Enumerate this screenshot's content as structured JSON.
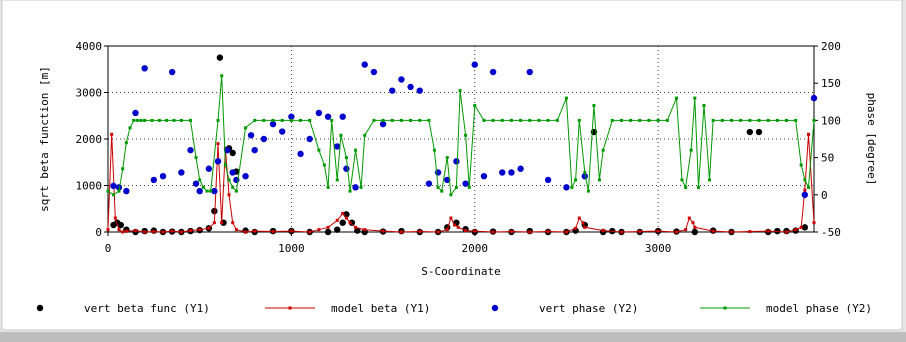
{
  "chart_data": {
    "type": "scatter",
    "xlabel": "S-Coordinate",
    "ylabel_left": "sqrt beta function [m]",
    "ylabel_right": "phase [degree]",
    "xlim": [
      0,
      3850
    ],
    "ylim_left": [
      0,
      4000
    ],
    "ylim_right": [
      -50,
      200
    ],
    "x_ticks": [
      0,
      1000,
      2000,
      3000
    ],
    "y_left_ticks": [
      0,
      1000,
      2000,
      3000,
      4000
    ],
    "y_right_ticks": [
      -50,
      0,
      50,
      100,
      150,
      200
    ],
    "grid": true,
    "legend_position": "bottom",
    "series": [
      {
        "name": "vert beta func (Y1)",
        "axis": "left",
        "color": "#000000",
        "style": "dots",
        "x": [
          30,
          50,
          70,
          100,
          150,
          200,
          250,
          300,
          350,
          400,
          450,
          500,
          550,
          580,
          610,
          630,
          660,
          680,
          700,
          750,
          800,
          900,
          1000,
          1100,
          1200,
          1250,
          1280,
          1300,
          1330,
          1360,
          1400,
          1500,
          1600,
          1700,
          1800,
          1850,
          1900,
          1950,
          2000,
          2100,
          2200,
          2300,
          2400,
          2500,
          2550,
          2600,
          2650,
          2700,
          2750,
          2800,
          2900,
          3000,
          3100,
          3200,
          3300,
          3400,
          3500,
          3550,
          3600,
          3650,
          3700,
          3750,
          3800
        ],
        "y": [
          150,
          200,
          150,
          50,
          0,
          20,
          30,
          0,
          10,
          0,
          20,
          40,
          80,
          450,
          3750,
          200,
          1800,
          1700,
          1300,
          30,
          0,
          20,
          20,
          0,
          0,
          50,
          200,
          380,
          200,
          30,
          0,
          10,
          20,
          0,
          0,
          100,
          200,
          60,
          0,
          10,
          0,
          20,
          0,
          0,
          30,
          150,
          2150,
          0,
          20,
          0,
          0,
          20,
          10,
          0,
          30,
          0,
          2150,
          2150,
          0,
          20,
          20,
          30,
          100
        ]
      },
      {
        "name": "model beta (Y1)",
        "axis": "left",
        "color": "#cc0000",
        "style": "line-markers",
        "x": [
          0,
          20,
          40,
          60,
          80,
          100,
          150,
          200,
          250,
          300,
          350,
          400,
          450,
          500,
          550,
          580,
          600,
          620,
          640,
          660,
          680,
          700,
          750,
          800,
          900,
          1000,
          1100,
          1150,
          1200,
          1250,
          1280,
          1300,
          1320,
          1350,
          1400,
          1500,
          1600,
          1700,
          1800,
          1850,
          1870,
          1890,
          1910,
          1950,
          2000,
          2100,
          2200,
          2300,
          2400,
          2500,
          2550,
          2570,
          2590,
          2600,
          2700,
          2800,
          2900,
          3000,
          3100,
          3150,
          3170,
          3190,
          3200,
          3300,
          3400,
          3500,
          3600,
          3700,
          3750,
          3780,
          3800,
          3820,
          3850
        ],
        "y": [
          50,
          2100,
          300,
          50,
          0,
          20,
          30,
          0,
          10,
          0,
          20,
          0,
          30,
          50,
          80,
          200,
          1900,
          200,
          1800,
          800,
          200,
          50,
          0,
          20,
          10,
          20,
          0,
          50,
          100,
          250,
          400,
          300,
          200,
          100,
          50,
          20,
          0,
          10,
          0,
          50,
          300,
          150,
          100,
          30,
          20,
          0,
          10,
          0,
          10,
          0,
          80,
          300,
          200,
          100,
          30,
          0,
          10,
          20,
          0,
          50,
          300,
          200,
          100,
          20,
          0,
          10,
          20,
          0,
          50,
          100,
          900,
          2100,
          200
        ]
      },
      {
        "name": "vert phase (Y2)",
        "axis": "right",
        "color": "#0000cc",
        "style": "dots",
        "x": [
          30,
          60,
          100,
          150,
          200,
          250,
          300,
          350,
          400,
          450,
          480,
          500,
          550,
          580,
          600,
          650,
          680,
          700,
          750,
          780,
          800,
          850,
          900,
          950,
          1000,
          1050,
          1100,
          1150,
          1200,
          1250,
          1280,
          1300,
          1350,
          1400,
          1450,
          1500,
          1550,
          1600,
          1650,
          1700,
          1750,
          1800,
          1850,
          1900,
          1950,
          2000,
          2050,
          2100,
          2150,
          2200,
          2250,
          2300,
          2400,
          2500,
          2600,
          3800,
          3850
        ],
        "y": [
          12,
          10,
          5,
          110,
          170,
          20,
          25,
          165,
          30,
          60,
          15,
          5,
          35,
          5,
          45,
          60,
          30,
          20,
          25,
          80,
          60,
          75,
          95,
          85,
          105,
          55,
          75,
          110,
          105,
          65,
          105,
          35,
          10,
          175,
          165,
          95,
          140,
          155,
          145,
          140,
          15,
          30,
          20,
          45,
          15,
          175,
          25,
          165,
          30,
          30,
          35,
          165,
          20,
          10,
          25,
          0,
          130
        ]
      },
      {
        "name": "model phase (Y2)",
        "axis": "right",
        "color": "#009900",
        "style": "line-markers",
        "x": [
          0,
          30,
          60,
          80,
          100,
          120,
          140,
          160,
          180,
          200,
          240,
          280,
          320,
          360,
          400,
          450,
          480,
          500,
          520,
          540,
          560,
          600,
          620,
          640,
          660,
          680,
          700,
          750,
          800,
          850,
          900,
          950,
          1000,
          1050,
          1100,
          1150,
          1180,
          1200,
          1220,
          1250,
          1270,
          1300,
          1320,
          1350,
          1380,
          1400,
          1450,
          1500,
          1550,
          1600,
          1650,
          1700,
          1750,
          1780,
          1800,
          1820,
          1850,
          1870,
          1900,
          1920,
          1950,
          1970,
          2000,
          2050,
          2100,
          2150,
          2200,
          2250,
          2300,
          2350,
          2400,
          2450,
          2500,
          2530,
          2550,
          2570,
          2600,
          2620,
          2650,
          2680,
          2700,
          2750,
          2800,
          2850,
          2900,
          2950,
          3000,
          3050,
          3100,
          3130,
          3150,
          3180,
          3200,
          3220,
          3250,
          3280,
          3300,
          3350,
          3400,
          3450,
          3500,
          3550,
          3600,
          3650,
          3700,
          3750,
          3780,
          3800,
          3820,
          3850
        ],
        "y": [
          5,
          0,
          5,
          35,
          70,
          90,
          100,
          100,
          100,
          100,
          100,
          100,
          100,
          100,
          100,
          100,
          50,
          20,
          10,
          5,
          5,
          100,
          160,
          40,
          20,
          10,
          5,
          90,
          100,
          100,
          100,
          100,
          100,
          100,
          100,
          60,
          40,
          10,
          100,
          20,
          80,
          50,
          5,
          60,
          10,
          80,
          100,
          100,
          100,
          100,
          100,
          100,
          100,
          60,
          10,
          5,
          50,
          0,
          10,
          140,
          80,
          10,
          120,
          100,
          100,
          100,
          100,
          100,
          100,
          100,
          100,
          100,
          130,
          10,
          20,
          100,
          30,
          5,
          120,
          20,
          60,
          100,
          100,
          100,
          100,
          100,
          100,
          100,
          130,
          20,
          10,
          60,
          130,
          10,
          120,
          20,
          100,
          100,
          100,
          100,
          100,
          100,
          100,
          100,
          100,
          100,
          40,
          20,
          10,
          100
        ]
      }
    ]
  }
}
